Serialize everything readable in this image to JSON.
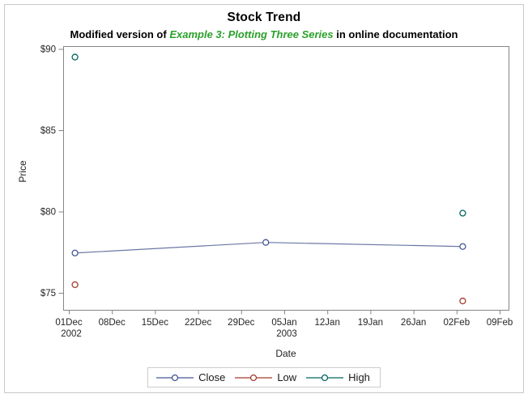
{
  "chart_data": {
    "type": "line",
    "title": "Stock Trend",
    "subtitle": {
      "prefix": "Modified version of ",
      "emphasis": "Example 3: Plotting Three Series",
      "suffix": " in online documentation"
    },
    "xlabel": "Date",
    "ylabel": "Price",
    "legend_position": "bottom",
    "grid": false,
    "x_axis": {
      "tick_labels": [
        "01Dec",
        "08Dec",
        "15Dec",
        "22Dec",
        "29Dec",
        "05Jan",
        "12Jan",
        "19Jan",
        "26Jan",
        "02Feb",
        "09Feb"
      ],
      "tick_days": [
        0,
        7,
        14,
        21,
        28,
        35,
        42,
        49,
        56,
        63,
        70
      ],
      "year_labels": [
        {
          "index": 0,
          "text": "2002"
        },
        {
          "index": 5,
          "text": "2003"
        }
      ]
    },
    "y_axis": {
      "tick_labels": [
        "$75",
        "$80",
        "$85",
        "$90"
      ],
      "tick_values": [
        75,
        80,
        85,
        90
      ],
      "range": [
        74.2,
        90.2
      ]
    },
    "series": [
      {
        "name": "Close",
        "marker_color": "#445694",
        "line_color": "#6b77a4",
        "has_line": true,
        "points": [
          {
            "date": "02Dec2002",
            "day": 1,
            "value": 77.45
          },
          {
            "date": "02Jan2003",
            "day": 32,
            "value": 78.1
          },
          {
            "date": "03Feb2003",
            "day": 64,
            "value": 77.85
          }
        ]
      },
      {
        "name": "Low",
        "marker_color": "#A23A2E",
        "line_color": "#A23A2E",
        "has_line": false,
        "points": [
          {
            "date": "02Dec2002",
            "day": 1,
            "value": 75.5
          },
          {
            "date": "03Feb2003",
            "day": 64,
            "value": 74.5
          }
        ]
      },
      {
        "name": "High",
        "marker_color": "#01665E",
        "line_color": "#01665E",
        "has_line": false,
        "points": [
          {
            "date": "02Dec2002",
            "day": 1,
            "value": 89.5
          },
          {
            "date": "03Feb2003",
            "day": 64,
            "value": 79.9
          }
        ]
      }
    ]
  }
}
